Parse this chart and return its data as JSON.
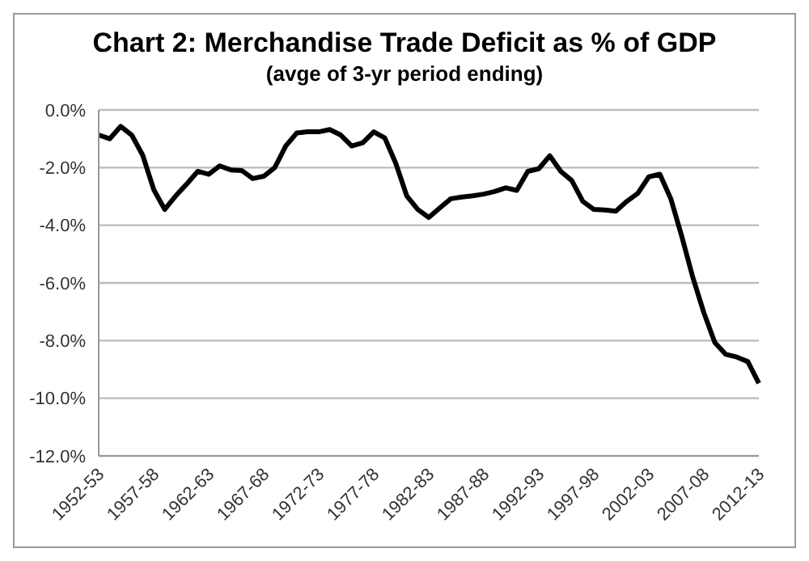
{
  "chart_data": {
    "type": "line",
    "title": "Chart 2: Merchandise Trade Deficit as % of GDP",
    "subtitle": "(avge of 3-yr period ending)",
    "categories": [
      "1952-53",
      null,
      null,
      null,
      null,
      "1957-58",
      null,
      null,
      null,
      null,
      "1962-63",
      null,
      null,
      null,
      null,
      "1967-68",
      null,
      null,
      null,
      null,
      "1972-73",
      null,
      null,
      null,
      null,
      "1977-78",
      null,
      null,
      null,
      null,
      "1982-83",
      null,
      null,
      null,
      null,
      "1987-88",
      null,
      null,
      null,
      null,
      "1992-93",
      null,
      null,
      null,
      null,
      "1997-98",
      null,
      null,
      null,
      null,
      "2002-03",
      null,
      null,
      null,
      null,
      "2007-08",
      null,
      null,
      null,
      null,
      "2012-13"
    ],
    "series": [
      {
        "color": "#000000",
        "values": [
          -0.87,
          -1.0,
          -0.57,
          -0.87,
          -1.57,
          -2.76,
          -3.45,
          -2.98,
          -2.57,
          -2.13,
          -2.23,
          -1.94,
          -2.08,
          -2.1,
          -2.38,
          -2.3,
          -2.0,
          -1.25,
          -0.8,
          -0.76,
          -0.76,
          -0.68,
          -0.87,
          -1.25,
          -1.14,
          -0.76,
          -0.97,
          -1.85,
          -2.98,
          -3.45,
          -3.73,
          -3.4,
          -3.08,
          -3.02,
          -2.98,
          -2.92,
          -2.83,
          -2.7,
          -2.79,
          -2.13,
          -2.04,
          -1.59,
          -2.13,
          -2.45,
          -3.17,
          -3.45,
          -3.47,
          -3.51,
          -3.17,
          -2.89,
          -2.32,
          -2.23,
          -3.08,
          -4.39,
          -5.81,
          -7.03,
          -8.07,
          -8.48,
          -8.57,
          -8.73,
          -9.48
        ]
      }
    ],
    "ylim": [
      -12,
      0
    ],
    "yticks": [
      {
        "value": -12,
        "label": "-12.0%"
      },
      {
        "value": -10,
        "label": "-10.0%"
      },
      {
        "value": -8,
        "label": "-8.0%"
      },
      {
        "value": -6,
        "label": "-6.0%"
      },
      {
        "value": -4,
        "label": "-4.0%"
      },
      {
        "value": -2,
        "label": "-2.0%"
      },
      {
        "value": 0,
        "label": "0.0%"
      }
    ],
    "grid": "y",
    "legend": false,
    "marker": "none",
    "line_style": "solid"
  }
}
